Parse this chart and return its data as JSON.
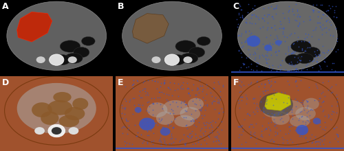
{
  "figsize": [
    5.0,
    2.2
  ],
  "dpi": 100,
  "panels": [
    "A",
    "B",
    "C",
    "D",
    "E",
    "F"
  ],
  "grid": [
    2,
    3
  ],
  "label_color": "#ffffff",
  "label_fontsize": 9,
  "colors": {
    "red_overlay": "#CC2200",
    "brown_overlay": "#7B5B3A",
    "blue_overlay": "#3355CC",
    "brown_bg": "#A0522D",
    "yellow_overlay": "#CCCC00",
    "gray_ct": "#666666",
    "dark_gray": "#555555",
    "white_bone": "#DDDDDD",
    "black": "#000000",
    "light_gray": "#AAAAAA"
  }
}
